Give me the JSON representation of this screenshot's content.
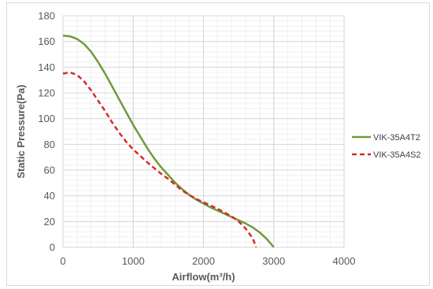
{
  "chart_data": {
    "type": "line",
    "title": "",
    "xlabel": "Airflow(m³/h)",
    "ylabel": "Static Pressure(Pa)",
    "xlim": [
      0,
      4000
    ],
    "ylim": [
      0,
      180
    ],
    "x_ticks": [
      0,
      1000,
      2000,
      3000,
      4000
    ],
    "y_ticks": [
      0,
      20,
      40,
      60,
      80,
      100,
      120,
      140,
      160,
      180
    ],
    "grid": true,
    "legend_position": "right",
    "series": [
      {
        "name": "VIK-35A4T2",
        "color": "#6f9a3a",
        "line_style": "solid",
        "x": [
          0,
          100,
          200,
          300,
          400,
          500,
          600,
          700,
          800,
          900,
          1000,
          1100,
          1200,
          1300,
          1400,
          1500,
          1600,
          1700,
          1800,
          1900,
          2000,
          2100,
          2200,
          2300,
          2400,
          2500,
          2600,
          2700,
          2800,
          2900,
          3000
        ],
        "y": [
          164.5,
          164,
          162,
          158,
          152,
          144,
          135,
          125,
          115,
          105,
          95,
          86,
          77,
          69,
          62,
          56,
          50,
          45,
          40.5,
          37,
          34,
          31,
          28.5,
          26,
          23.5,
          21,
          18.5,
          15.5,
          11.5,
          6.5,
          0
        ]
      },
      {
        "name": "VIK-35A4S2",
        "color": "#d42a2a",
        "line_style": "dashed",
        "x": [
          0,
          100,
          200,
          300,
          400,
          500,
          600,
          700,
          800,
          900,
          1000,
          1100,
          1200,
          1300,
          1400,
          1500,
          1600,
          1700,
          1800,
          1900,
          2000,
          2100,
          2200,
          2300,
          2400,
          2500,
          2600,
          2700,
          2750
        ],
        "y": [
          135,
          136,
          134,
          129,
          122,
          114,
          106,
          97,
          89,
          82,
          76,
          71,
          66,
          61.5,
          57,
          53,
          48.5,
          44,
          40.5,
          37.5,
          35,
          32.5,
          30,
          27,
          24,
          20,
          14.5,
          7,
          0
        ]
      }
    ]
  }
}
